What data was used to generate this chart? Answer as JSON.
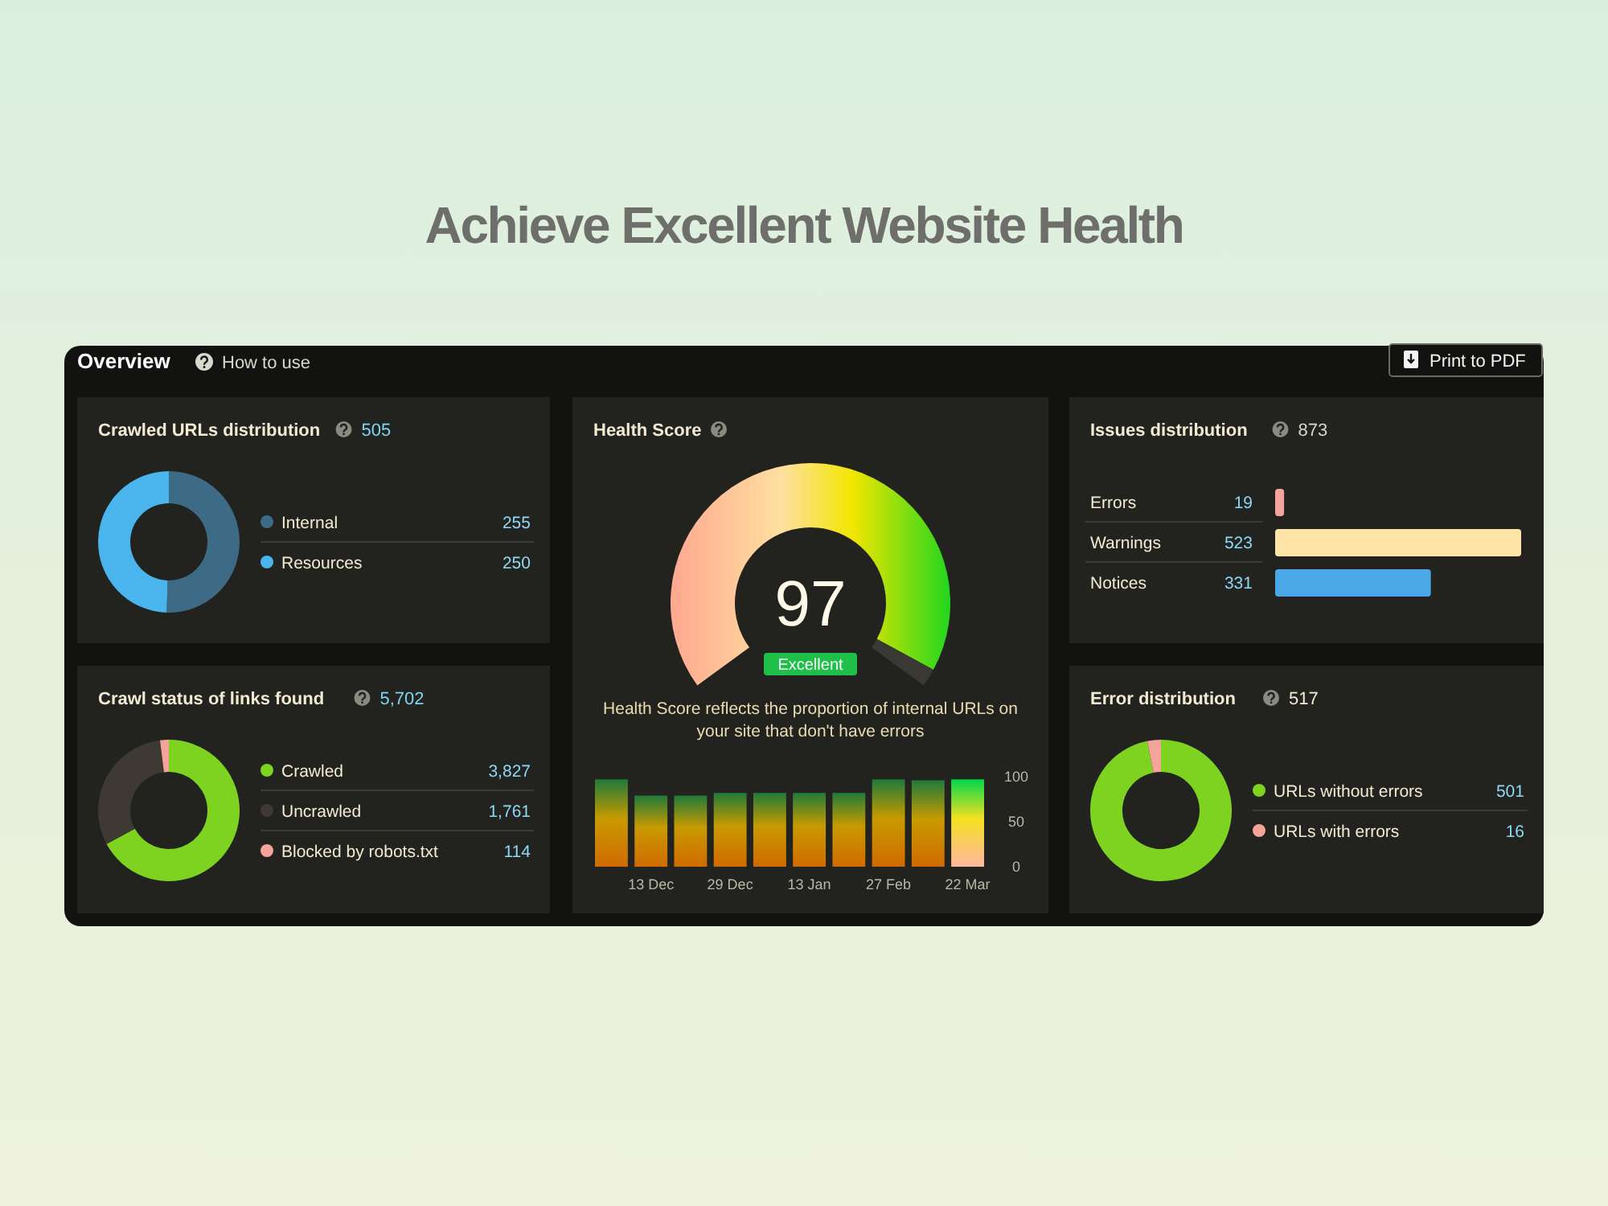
{
  "chart_data": [
    {
      "type": "other",
      "title": "Achieve Excellent Website Health",
      "annotations": [
        "Overview",
        "How to use",
        "Print to PDF"
      ]
    },
    {
      "type": "donut",
      "title": "Crawled URLs distribution",
      "subtitle": "505",
      "categories": [
        "Internal",
        "Resources"
      ],
      "values": [
        255,
        250
      ],
      "colors": [
        "#3d6b85",
        "#4ab4ec"
      ],
      "data_labels": true,
      "legend": "right"
    },
    {
      "type": "donut",
      "title": "Health Score",
      "categories": [
        null,
        null
      ],
      "values": [
        97,
        3
      ],
      "colors": [
        "#22d61e",
        "#3a3833"
      ],
      "annotations": [
        "97",
        "Excellent",
        "Health Score reflects the proportion of internal URLs on your site that don't have errors"
      ]
    },
    {
      "type": "bar",
      "categories": [
        null,
        "13 Dec",
        null,
        "29 Dec",
        null,
        "13 Jan",
        null,
        "27 Feb",
        null,
        "22 Mar"
      ],
      "values": [
        97,
        79,
        79,
        82,
        82,
        82,
        82,
        97,
        96,
        97
      ],
      "colors": [
        "#c89a00",
        "#c89a00",
        "#c89a00",
        "#c89a00",
        "#c89a00",
        "#c89a00",
        "#c89a00",
        "#c89a00",
        "#c89a00",
        "#f5e020"
      ],
      "ylim": [
        0,
        100
      ],
      "yticks": [
        0,
        50,
        100
      ]
    },
    {
      "type": "bar",
      "orientation": "horizontal",
      "title": "Issues distribution",
      "subtitle": "873",
      "categories": [
        "Errors",
        "Warnings",
        "Notices"
      ],
      "values": [
        19,
        523,
        331
      ],
      "colors": [
        "#f4a49a",
        "#ffe4a8",
        "#4aa8e8"
      ],
      "data_labels": true
    },
    {
      "type": "donut",
      "title": "Crawl status of links found",
      "subtitle": "5,702",
      "categories": [
        "Crawled",
        "Uncrawled",
        "Blocked by robots.txt"
      ],
      "values": [
        3827,
        1761,
        114
      ],
      "value_labels": [
        "3,827",
        "1,761",
        "114"
      ],
      "colors": [
        "#7ed321",
        "#3e3a33",
        "#f4a49a"
      ],
      "legend": "right"
    },
    {
      "type": "donut",
      "title": "Error distribution",
      "subtitle": "517",
      "categories": [
        "URLs without errors",
        "URLs with errors"
      ],
      "values": [
        501,
        16
      ],
      "colors": [
        "#7ed321",
        "#f4a49a"
      ],
      "data_labels": true,
      "legend": "right"
    }
  ]
}
